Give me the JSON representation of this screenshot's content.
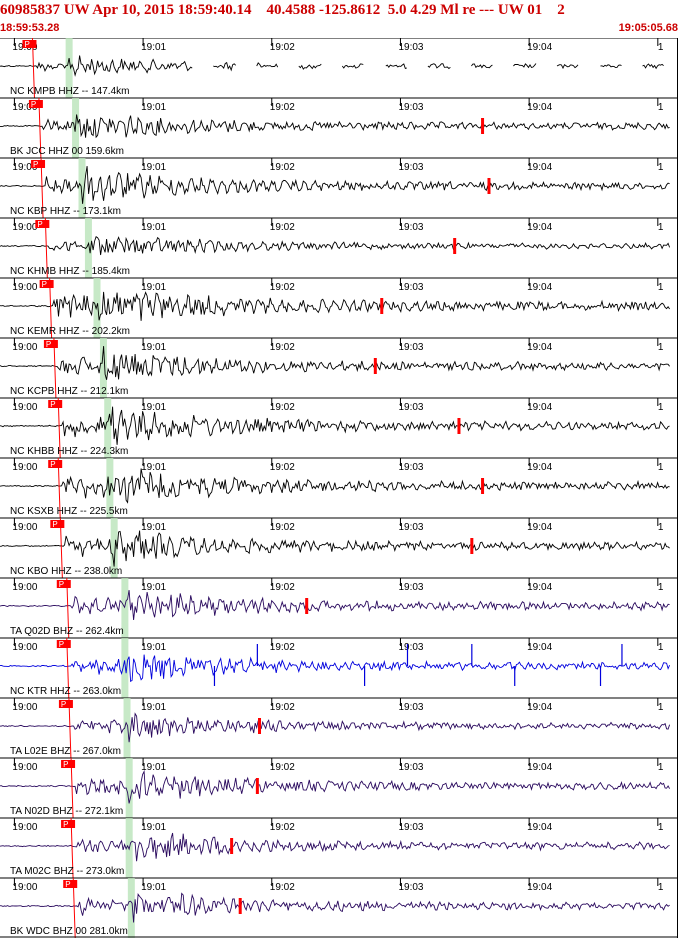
{
  "header": {
    "title": "60985837 UW Apr 10, 2015 18:59:40.14    40.4588 -125.8612  5.0 4.29 Ml re --- UW 01    2",
    "start_time": "18:59:53.28",
    "end_time": "19:05:05.68"
  },
  "chart_data": {
    "type": "line",
    "title": "",
    "x_axis": {
      "start_seconds": 0,
      "end_seconds": 312.4,
      "tick_labels": [
        "19:00",
        "19:01",
        "19:02",
        "19:03",
        "19:04",
        "1"
      ],
      "tick_seconds": [
        6.72,
        66.72,
        126.72,
        186.72,
        246.72,
        306.72
      ]
    },
    "pick_flag_label": "P",
    "colors": {
      "short_period": "#000000",
      "broadband": "#2a0a5e",
      "highlight": "#0000dd",
      "pick": "#ff0000",
      "window": "#b9e3b9"
    },
    "series": [
      {
        "name": "NC KMPB HHZ -- 147.4km",
        "color": "#000000",
        "p_arrival": 17,
        "s_arrival": 32,
        "late_pick": null,
        "amplitude": 0.35,
        "gapped": true
      },
      {
        "name": "BK JCC HHZ 00 159.6km",
        "color": "#000000",
        "p_arrival": 20,
        "s_arrival": 35,
        "late_pick": 225,
        "amplitude": 0.55,
        "gapped": false
      },
      {
        "name": "NC KBP HHZ -- 173.1km",
        "color": "#000000",
        "p_arrival": 21,
        "s_arrival": 38,
        "late_pick": 228,
        "amplitude": 0.6,
        "gapped": false
      },
      {
        "name": "NC KHMB HHZ -- 185.4km",
        "color": "#000000",
        "p_arrival": 23,
        "s_arrival": 41,
        "late_pick": 212,
        "amplitude": 0.45,
        "gapped": false
      },
      {
        "name": "NC KEMR HHZ -- 202.2km",
        "color": "#000000",
        "p_arrival": 25,
        "s_arrival": 45,
        "late_pick": 178,
        "amplitude": 0.7,
        "gapped": false
      },
      {
        "name": "NC KCPB HHZ -- 212.1km",
        "color": "#000000",
        "p_arrival": 27,
        "s_arrival": 48,
        "late_pick": 175,
        "amplitude": 0.6,
        "gapped": false
      },
      {
        "name": "NC KHBB HHZ -- 224.3km",
        "color": "#000000",
        "p_arrival": 29,
        "s_arrival": 50,
        "late_pick": 214,
        "amplitude": 0.65,
        "gapped": false
      },
      {
        "name": "NC KSXB HHZ -- 225.5km",
        "color": "#000000",
        "p_arrival": 29,
        "s_arrival": 51,
        "late_pick": 225,
        "amplitude": 0.65,
        "gapped": false
      },
      {
        "name": "NC KBO HHZ -- 238.0km",
        "color": "#000000",
        "p_arrival": 30,
        "s_arrival": 53,
        "late_pick": 220,
        "amplitude": 0.6,
        "gapped": false
      },
      {
        "name": "TA Q02D BHZ -- 262.4km",
        "color": "#2a0a5e",
        "p_arrival": 33,
        "s_arrival": 58,
        "late_pick": 143,
        "amplitude": 0.6,
        "gapped": false
      },
      {
        "name": "NC KTR HHZ -- 263.0km",
        "color": "#0000dd",
        "p_arrival": 33,
        "s_arrival": 58,
        "late_pick": null,
        "amplitude": 0.55,
        "gapped": false
      },
      {
        "name": "TA L02E BHZ -- 267.0km",
        "color": "#2a0a5e",
        "p_arrival": 34,
        "s_arrival": 59,
        "late_pick": 121,
        "amplitude": 0.5,
        "gapped": false
      },
      {
        "name": "TA N02D BHZ -- 272.1km",
        "color": "#2a0a5e",
        "p_arrival": 35,
        "s_arrival": 60,
        "late_pick": 120,
        "amplitude": 0.55,
        "gapped": false
      },
      {
        "name": "TA M02C BHZ -- 273.0km",
        "color": "#2a0a5e",
        "p_arrival": 35,
        "s_arrival": 60,
        "late_pick": 108,
        "amplitude": 0.55,
        "gapped": false
      },
      {
        "name": "BK WDC BHZ 00 281.0km",
        "color": "#2a0a5e",
        "p_arrival": 36,
        "s_arrival": 61,
        "late_pick": 112,
        "amplitude": 0.55,
        "gapped": false
      }
    ]
  }
}
